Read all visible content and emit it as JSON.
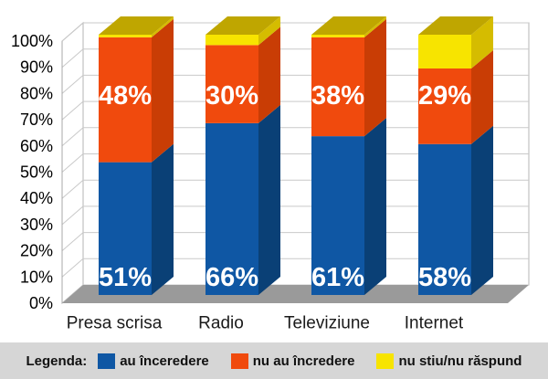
{
  "chart_data": {
    "type": "bar",
    "subtype": "stacked-100-percent-3d",
    "title": "",
    "xlabel": "",
    "ylabel": "",
    "categories": [
      "Presa scrisa",
      "Radio",
      "Televiziune",
      "Internet"
    ],
    "series": [
      {
        "name": "au înceredere",
        "values": [
          51,
          66,
          61,
          58
        ],
        "data_labels": [
          "51%",
          "66%",
          "61%",
          "58%"
        ],
        "color": "#0F57A4",
        "color_side": "#0A4076",
        "color_top": "#0C4A8A"
      },
      {
        "name": "nu au încredere",
        "values": [
          48,
          30,
          38,
          29
        ],
        "data_labels": [
          "48%",
          "30%",
          "38%",
          "29%"
        ],
        "color": "#F04A0D",
        "color_side": "#C93D05",
        "color_top": "#D44408"
      },
      {
        "name": "nu stiu/nu răspund",
        "values": [
          1,
          4,
          1,
          13
        ],
        "data_labels": null,
        "color": "#F7E400",
        "color_side": "#D5BC00",
        "color_top": "#BFA600"
      }
    ],
    "y_axis": {
      "min": 0,
      "max": 100,
      "step": 10,
      "ticks": [
        "0%",
        "10%",
        "20%",
        "30%",
        "40%",
        "50%",
        "60%",
        "70%",
        "80%",
        "90%",
        "100%"
      ]
    },
    "grid": true,
    "legend_position": "bottom"
  },
  "legend": {
    "title": "Legenda:",
    "items": [
      {
        "label": "au înceredere",
        "color": "#0F57A4"
      },
      {
        "label": "nu au încredere",
        "color": "#F04A0D"
      },
      {
        "label": "nu stiu/nu răspund",
        "color": "#F7E400"
      }
    ]
  },
  "colors": {
    "background": "#FFFFFF",
    "floor": "#9A9A9A",
    "gridline": "#C9C9C9",
    "wall_border": "#B5B5B5",
    "axis_line": "#A8A8A8",
    "bar_label_text": "#FFFFFF",
    "axis_text": "#000000",
    "category_text": "#1A1A1A",
    "legend_band": "#D6D6D6",
    "legend_text": "#111111"
  }
}
